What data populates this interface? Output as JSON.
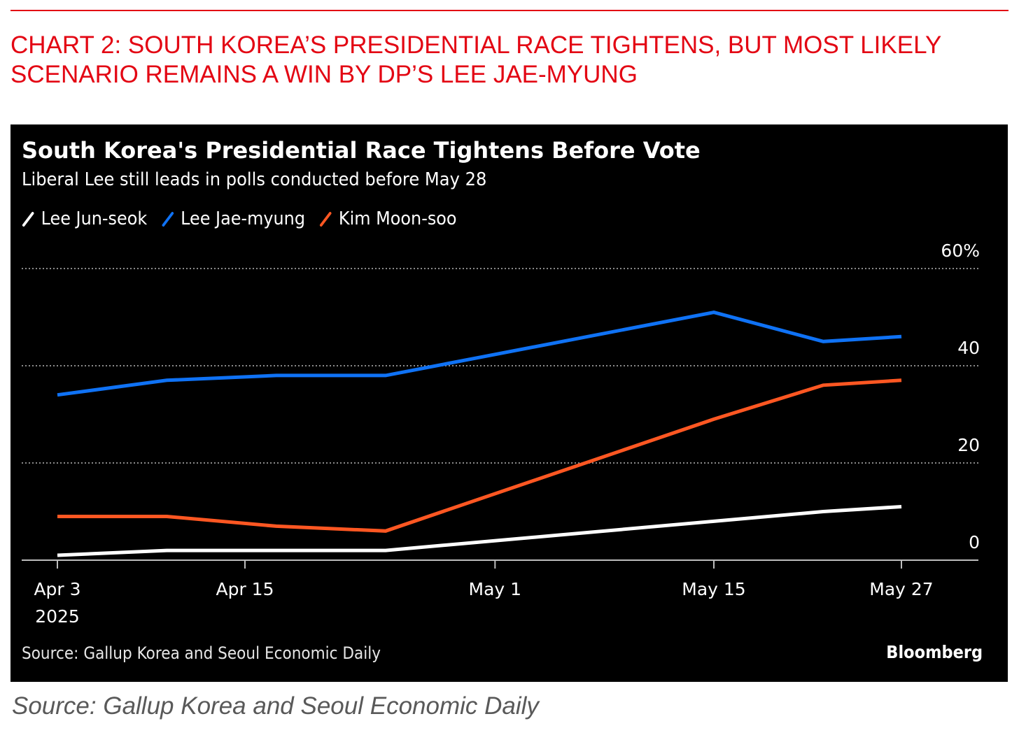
{
  "header": {
    "headline": "CHART 2: SOUTH KOREA’S PRESIDENTIAL RACE TIGHTENS, BUT MOST LIKELY SCENARIO REMAINS A WIN BY DP’S LEE JAE-MYUNG",
    "accent_color": "#e30613"
  },
  "footer": {
    "source": "Source: Gallup Korea and Seoul Economic Daily"
  },
  "chart_data": {
    "type": "line",
    "title": "South Korea's Presidential Race Tightens Before Vote",
    "subtitle": "Liberal Lee still leads in polls conducted before May 28",
    "source": "Source: Gallup Korea and Seoul Economic Daily",
    "brand": "Bloomberg",
    "xlabel": "",
    "ylabel": "",
    "legend_position": "top-left",
    "grid": true,
    "x": [
      "2025-04-03",
      "2025-04-10",
      "2025-04-17",
      "2025-04-24",
      "2025-05-15",
      "2025-05-22",
      "2025-05-27"
    ],
    "xlim": [
      "2025-03-29",
      "2025-06-01"
    ],
    "x_ticks": [
      {
        "date": "2025-04-03",
        "label": "Apr 3",
        "sublabel": "2025"
      },
      {
        "date": "2025-04-15",
        "label": "Apr 15",
        "sublabel": ""
      },
      {
        "date": "2025-05-01",
        "label": "May 1",
        "sublabel": ""
      },
      {
        "date": "2025-05-15",
        "label": "May 15",
        "sublabel": ""
      },
      {
        "date": "2025-05-27",
        "label": "May 27",
        "sublabel": ""
      }
    ],
    "ylim": [
      0,
      60
    ],
    "y_ticks": [
      {
        "value": 0,
        "label": "0"
      },
      {
        "value": 20,
        "label": "20"
      },
      {
        "value": 40,
        "label": "40"
      },
      {
        "value": 60,
        "label": "60%"
      }
    ],
    "series": [
      {
        "name": "Lee Jun-seok",
        "color": "#ffffff",
        "values": [
          1,
          2,
          2,
          2,
          8,
          10,
          11
        ]
      },
      {
        "name": "Lee Jae-myung",
        "color": "#0f72f5",
        "values": [
          34,
          37,
          38,
          38,
          51,
          45,
          46
        ]
      },
      {
        "name": "Kim Moon-soo",
        "color": "#ff5722",
        "values": [
          9,
          9,
          7,
          6,
          29,
          36,
          37
        ]
      }
    ]
  }
}
